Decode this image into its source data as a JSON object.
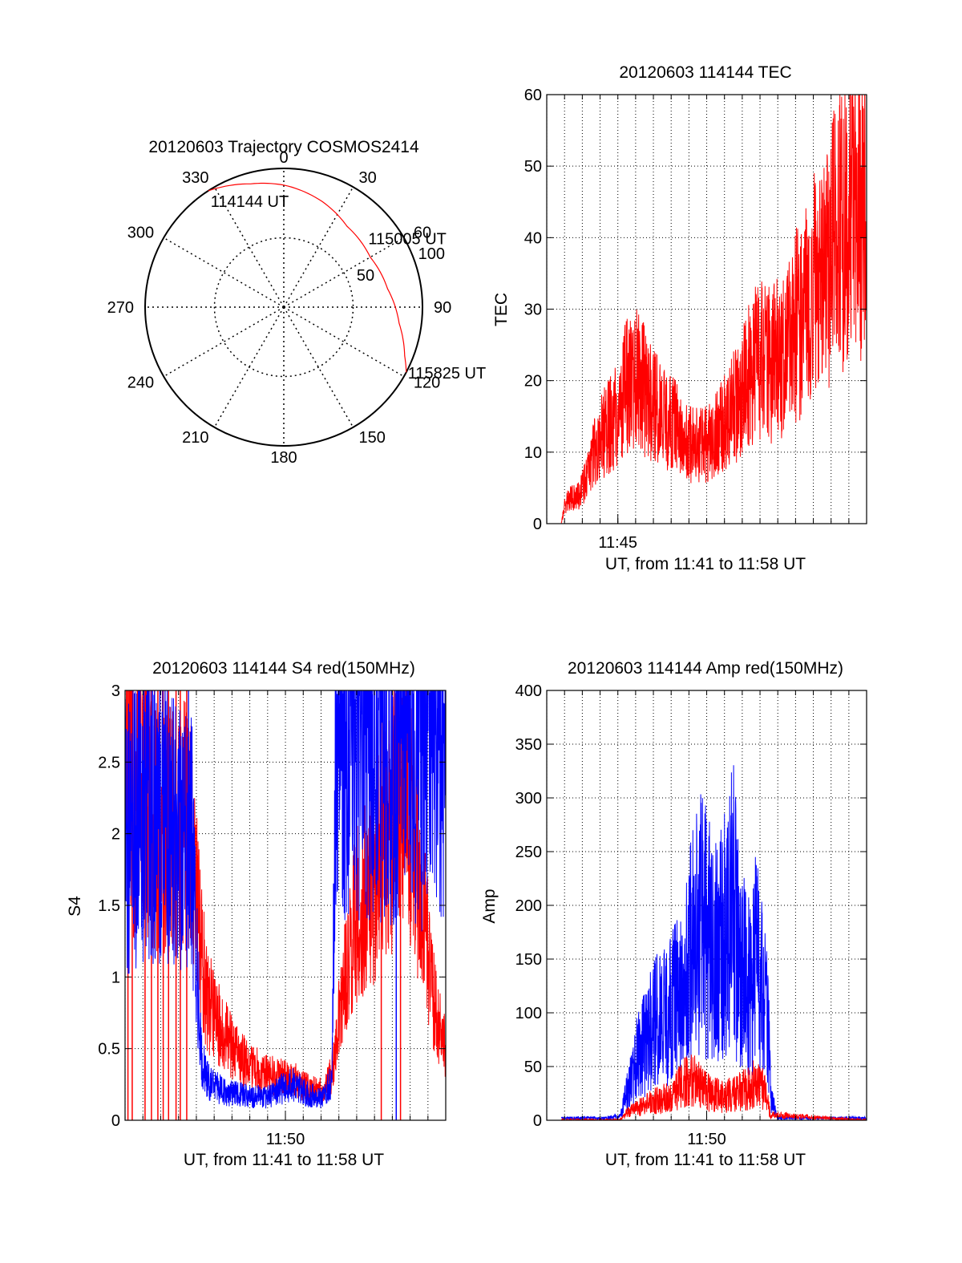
{
  "colors": {
    "red": "#ff0000",
    "blue": "#0000ff",
    "axis": "#000000",
    "grid": "#000000"
  },
  "chart_data": [
    {
      "id": "trajectory",
      "type": "polar",
      "title": "20120603 Trajectory COSMOS2414",
      "angle_labels": [
        "0",
        "30",
        "60",
        "90",
        "120",
        "150",
        "180",
        "210",
        "240",
        "270",
        "300",
        "330"
      ],
      "radius_labels": [
        "50",
        "100"
      ],
      "r_max": 100,
      "grid": true,
      "series": [
        {
          "color": "red",
          "points": [
            {
              "az": 327,
              "r": 100
            },
            {
              "az": 345,
              "r": 92
            },
            {
              "az": 0,
              "r": 88
            },
            {
              "az": 20,
              "r": 81
            },
            {
              "az": 38,
              "r": 74
            },
            {
              "az": 60,
              "r": 72
            },
            {
              "az": 80,
              "r": 76
            },
            {
              "az": 98,
              "r": 84
            },
            {
              "az": 112,
              "r": 94
            },
            {
              "az": 118,
              "r": 100
            }
          ]
        }
      ],
      "annotations": [
        {
          "text": "114144 UT",
          "az": 325,
          "r": 94
        },
        {
          "text": "115005 UT",
          "az": 50,
          "r": 78
        },
        {
          "text": "115825 UT",
          "az": 118,
          "r": 100
        }
      ]
    },
    {
      "id": "tec",
      "type": "line",
      "title": "20120603 114144 TEC",
      "xlabel": "UT, from 11:41 to 11:58 UT",
      "ylabel": "TEC",
      "xlim": [
        11.6833,
        11.9833
      ],
      "ylim": [
        0,
        60
      ],
      "x_ticks": [
        {
          "x": 11.75,
          "label": "11:45"
        }
      ],
      "y_ticks": [
        0,
        10,
        20,
        30,
        40,
        50,
        60
      ],
      "grid": true,
      "series": [
        {
          "color": "red",
          "noise": 0.5,
          "x": [
            11.697,
            11.7,
            11.705,
            11.713,
            11.72,
            11.727,
            11.733,
            11.74,
            11.747,
            11.753,
            11.76,
            11.767,
            11.773,
            11.78,
            11.79,
            11.8,
            11.81,
            11.817,
            11.83,
            11.84,
            11.85,
            11.86,
            11.87,
            11.877,
            11.887,
            11.893,
            11.897,
            11.9,
            11.903,
            11.913,
            11.92,
            11.927,
            11.933,
            11.943,
            11.95,
            11.957,
            11.963,
            11.97,
            11.977,
            11.983
          ],
          "y": [
            0,
            2.5,
            3.6,
            3.8,
            6.0,
            9.5,
            12.0,
            13.2,
            14.5,
            17.5,
            19.5,
            21.0,
            19.2,
            16.8,
            15.4,
            14.2,
            12.3,
            11.0,
            10.8,
            11.8,
            14.0,
            16.5,
            19.5,
            22.0,
            23.8,
            21.8,
            23.0,
            24.6,
            21.8,
            26.5,
            28.5,
            30.2,
            33.8,
            35.5,
            38.5,
            40.5,
            41.0,
            43.0,
            45.0,
            47.0
          ]
        }
      ]
    },
    {
      "id": "s4",
      "type": "line",
      "title": "20120603 114144 S4 red(150MHz)",
      "xlabel": "UT, from 11:41 to 11:58 UT",
      "ylabel": "S4",
      "xlim": [
        11.6833,
        11.9833
      ],
      "ylim": [
        0,
        3
      ],
      "x_ticks": [
        {
          "x": 11.8333,
          "label": "11:50"
        }
      ],
      "y_ticks": [
        0,
        0.5,
        1,
        1.5,
        2,
        2.5,
        3
      ],
      "y_tick_labels": [
        "0",
        "0.5",
        "1",
        "1.5",
        "2",
        "2.5",
        "3"
      ],
      "grid": true,
      "series": [
        {
          "color": "red",
          "noise": 0.45,
          "x": [
            11.683,
            11.7,
            11.72,
            11.745,
            11.754,
            11.76,
            11.775,
            11.79,
            11.8,
            11.815,
            11.83,
            11.84,
            11.855,
            11.87,
            11.877,
            11.895,
            11.905,
            11.915,
            11.93,
            11.945,
            11.96,
            11.975,
            11.983
          ],
          "y": [
            2.3,
            2.2,
            2.1,
            2.0,
            1.2,
            0.85,
            0.6,
            0.45,
            0.38,
            0.32,
            0.3,
            0.3,
            0.22,
            0.2,
            0.35,
            1.3,
            1.55,
            1.7,
            2.0,
            2.3,
            1.6,
            0.7,
            0.5
          ],
          "dropouts": [
            11.686,
            11.69,
            11.702,
            11.708,
            11.714,
            11.719,
            11.724,
            11.731,
            11.735,
            11.741,
            11.923,
            11.941
          ]
        },
        {
          "color": "blue",
          "noise": 0.5,
          "x": [
            11.683,
            11.7,
            11.72,
            11.745,
            11.754,
            11.76,
            11.775,
            11.79,
            11.8,
            11.815,
            11.83,
            11.84,
            11.855,
            11.87,
            11.877,
            11.88,
            11.9,
            11.92,
            11.94,
            11.96,
            11.975,
            11.983
          ],
          "y": [
            2.0,
            2.1,
            2.2,
            2.0,
            0.5,
            0.28,
            0.2,
            0.18,
            0.17,
            0.16,
            0.22,
            0.25,
            0.18,
            0.16,
            0.3,
            2.7,
            2.8,
            2.7,
            2.6,
            2.6,
            2.7,
            2.7
          ],
          "dropouts": [
            11.937
          ]
        }
      ]
    },
    {
      "id": "amp",
      "type": "line",
      "title": "20120603 114144 Amp red(150MHz)",
      "xlabel": "UT, from 11:41 to 11:58 UT",
      "ylabel": "Amp",
      "xlim": [
        11.6833,
        11.9833
      ],
      "ylim": [
        0,
        400
      ],
      "x_ticks": [
        {
          "x": 11.8333,
          "label": "11:50"
        }
      ],
      "y_ticks": [
        0,
        50,
        100,
        150,
        200,
        250,
        300,
        350,
        400
      ],
      "grid": true,
      "series": [
        {
          "color": "blue",
          "noise": 0.7,
          "x": [
            11.697,
            11.74,
            11.752,
            11.76,
            11.768,
            11.775,
            11.785,
            11.795,
            11.805,
            11.813,
            11.82,
            11.828,
            11.835,
            11.843,
            11.85,
            11.858,
            11.865,
            11.872,
            11.88,
            11.89,
            11.894,
            11.9,
            11.983
          ],
          "y": [
            2,
            2,
            4,
            30,
            60,
            70,
            90,
            100,
            110,
            130,
            160,
            180,
            170,
            150,
            170,
            200,
            150,
            120,
            150,
            100,
            20,
            2,
            2
          ]
        },
        {
          "color": "red",
          "noise": 0.7,
          "x": [
            11.697,
            11.752,
            11.76,
            11.77,
            11.785,
            11.8,
            11.812,
            11.82,
            11.83,
            11.84,
            11.85,
            11.86,
            11.87,
            11.88,
            11.888,
            11.893,
            11.983
          ],
          "y": [
            0,
            0,
            8,
            12,
            18,
            22,
            35,
            38,
            28,
            24,
            22,
            25,
            30,
            34,
            28,
            5,
            0
          ]
        }
      ]
    }
  ]
}
